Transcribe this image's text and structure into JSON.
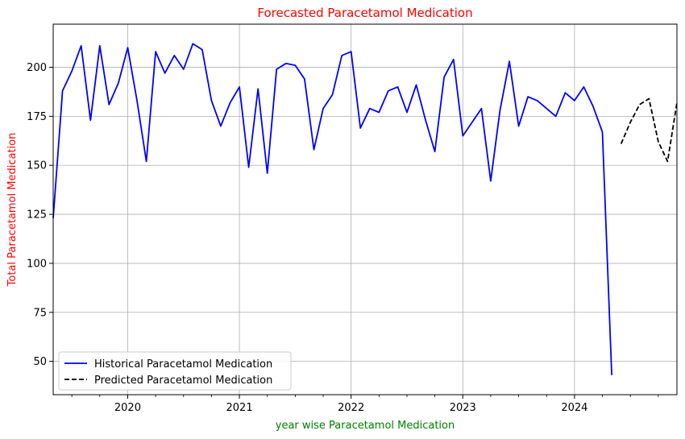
{
  "chart_data": {
    "type": "line",
    "title": "Forecasted Paracetamol Medication",
    "title_color": "#ff0000",
    "xlabel": "year wise Paracetamol Medication",
    "xlabel_color": "#008000",
    "ylabel": "Total Paracetamol Medication",
    "ylabel_color": "#ff0000",
    "xlim": [
      2019.333,
      2024.917
    ],
    "ylim": [
      33,
      222
    ],
    "grid": true,
    "legend_position": "lower-left",
    "x_ticks": [
      {
        "value": 2020,
        "label": "2020"
      },
      {
        "value": 2021,
        "label": "2021"
      },
      {
        "value": 2022,
        "label": "2022"
      },
      {
        "value": 2023,
        "label": "2023"
      },
      {
        "value": 2024,
        "label": "2024"
      }
    ],
    "y_ticks": [
      {
        "value": 50,
        "label": "50"
      },
      {
        "value": 75,
        "label": "75"
      },
      {
        "value": 100,
        "label": "100"
      },
      {
        "value": 125,
        "label": "125"
      },
      {
        "value": 150,
        "label": "150"
      },
      {
        "value": 175,
        "label": "175"
      },
      {
        "value": 200,
        "label": "200"
      }
    ],
    "series": [
      {
        "name": "Historical Paracetamol Medication",
        "color": "#0000ff",
        "style": "solid",
        "x": [
          2019.333,
          2019.417,
          2019.5,
          2019.583,
          2019.667,
          2019.75,
          2019.833,
          2019.917,
          2020.0,
          2020.083,
          2020.167,
          2020.25,
          2020.333,
          2020.417,
          2020.5,
          2020.583,
          2020.667,
          2020.75,
          2020.833,
          2020.917,
          2021.0,
          2021.083,
          2021.167,
          2021.25,
          2021.333,
          2021.417,
          2021.5,
          2021.583,
          2021.667,
          2021.75,
          2021.833,
          2021.917,
          2022.0,
          2022.083,
          2022.167,
          2022.25,
          2022.333,
          2022.417,
          2022.5,
          2022.583,
          2022.667,
          2022.75,
          2022.833,
          2022.917,
          2023.0,
          2023.167,
          2023.25,
          2023.333,
          2023.417,
          2023.5,
          2023.583,
          2023.667,
          2023.833,
          2023.917,
          2024.0,
          2024.083,
          2024.167,
          2024.25,
          2024.333
        ],
        "values": [
          123,
          188,
          198,
          211,
          173,
          211,
          181,
          192,
          210,
          183,
          152,
          208,
          197,
          206,
          199,
          212,
          209,
          183,
          170,
          182,
          190,
          149,
          189,
          146,
          199,
          202,
          201,
          194,
          158,
          179,
          186,
          206,
          208,
          169,
          179,
          177,
          188,
          190,
          177,
          191,
          173,
          157,
          195,
          204,
          165,
          179,
          142,
          178,
          203,
          170,
          185,
          183,
          175,
          187,
          183,
          190,
          180,
          167,
          43
        ]
      },
      {
        "name": "Predicted Paracetamol Medication",
        "color": "#000000",
        "style": "dashed",
        "x": [
          2024.417,
          2024.5,
          2024.583,
          2024.667,
          2024.75,
          2024.833,
          2024.917
        ],
        "values": [
          161,
          172,
          181,
          184,
          162,
          152,
          182
        ]
      }
    ]
  }
}
